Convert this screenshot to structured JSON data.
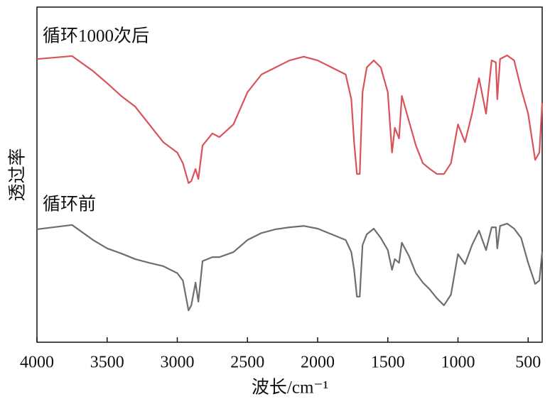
{
  "chart_data": {
    "type": "line",
    "x_label": "波长/cm⁻¹",
    "y_label": "透过率",
    "x": [
      4000,
      3750,
      3600,
      3500,
      3400,
      3300,
      3200,
      3100,
      3000,
      2960,
      2920,
      2900,
      2870,
      2850,
      2820,
      2750,
      2700,
      2600,
      2500,
      2400,
      2300,
      2200,
      2100,
      2000,
      1900,
      1800,
      1760,
      1740,
      1720,
      1700,
      1680,
      1650,
      1600,
      1550,
      1500,
      1470,
      1450,
      1420,
      1400,
      1350,
      1300,
      1250,
      1200,
      1150,
      1100,
      1050,
      1000,
      950,
      900,
      850,
      800,
      760,
      730,
      720,
      700,
      650,
      600,
      550,
      500,
      450,
      420,
      400
    ],
    "series": [
      {
        "name": "循环1000次后",
        "color": "#d9535a",
        "values": [
          84.5,
          85.4,
          80.9,
          77.3,
          73.5,
          70.3,
          65.0,
          59.7,
          56.6,
          53.4,
          47.5,
          48.1,
          51.7,
          48.7,
          58.7,
          62.3,
          61.2,
          65.0,
          74.6,
          79.9,
          82.0,
          84.1,
          85.2,
          84.1,
          82.0,
          79.9,
          72.5,
          59.7,
          50.2,
          50.2,
          74.6,
          82.0,
          84.1,
          82.0,
          74.6,
          56.6,
          64.0,
          60.8,
          73.5,
          66.1,
          58.7,
          53.4,
          51.7,
          50.2,
          50.2,
          53.4,
          65.0,
          59.7,
          68.2,
          78.8,
          68.2,
          84.1,
          83.5,
          72.5,
          84.5,
          85.6,
          84.1,
          75.6,
          68.2,
          54.4,
          56.6,
          71.4
        ]
      },
      {
        "name": "循环前",
        "color": "#6e6e6e",
        "values": [
          33.7,
          35.0,
          30.5,
          28.0,
          26.5,
          24.8,
          23.7,
          22.7,
          20.6,
          18.4,
          9.5,
          11.0,
          17.8,
          12.1,
          24.2,
          25.4,
          25.4,
          26.9,
          30.5,
          32.6,
          33.7,
          34.3,
          34.7,
          33.9,
          32.2,
          30.5,
          26.9,
          21.6,
          13.6,
          13.6,
          29.0,
          32.2,
          33.9,
          31.1,
          27.5,
          21.6,
          24.8,
          23.7,
          29.7,
          25.8,
          20.6,
          17.8,
          15.7,
          13.1,
          11.0,
          14.2,
          26.3,
          23.3,
          29.0,
          33.3,
          27.5,
          34.3,
          34.3,
          28.0,
          34.7,
          35.4,
          33.9,
          31.1,
          23.7,
          17.4,
          18.4,
          26.9
        ]
      }
    ],
    "xlim": [
      4000,
      400
    ],
    "xticks": [
      4000,
      3500,
      3000,
      2500,
      2000,
      1500,
      1000,
      500
    ],
    "ylim": [
      0,
      100
    ]
  }
}
